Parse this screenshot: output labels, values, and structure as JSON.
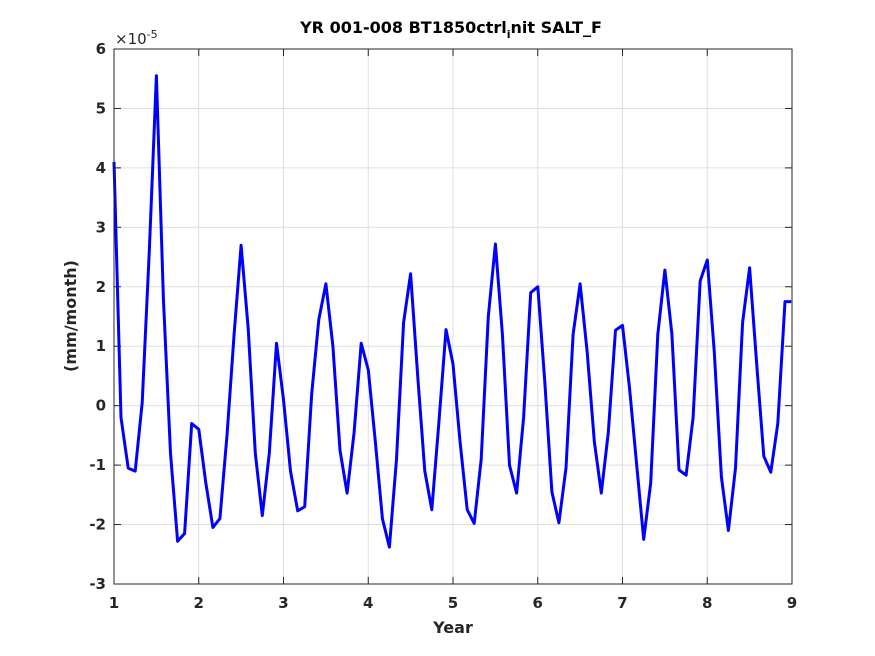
{
  "chart_data": {
    "type": "line",
    "title": "YR 001-008 BT1850ctrl_init SALT_F",
    "title_main": "YR 001-008 BT1850ctrl",
    "title_sub": "i",
    "title_tail": "nit SALT_F",
    "xlabel": "Year",
    "ylabel": "(mm/month)",
    "y_exponent_base": "×10",
    "y_exponent_power": "-5",
    "xlim": [
      1,
      9
    ],
    "ylim": [
      -3,
      6
    ],
    "xticks": [
      "1",
      "2",
      "3",
      "4",
      "5",
      "6",
      "7",
      "8",
      "9"
    ],
    "yticks": [
      "-3",
      "-2",
      "-1",
      "0",
      "1",
      "2",
      "3",
      "4",
      "5",
      "6"
    ],
    "grid": true,
    "line_color": "#0000ff",
    "series": [
      {
        "x": [
          1.0,
          1.083,
          1.167,
          1.25,
          1.333,
          1.417,
          1.5,
          1.583,
          1.667,
          1.75,
          1.833,
          1.917,
          2.0,
          2.083,
          2.167,
          2.25,
          2.333,
          2.417,
          2.5,
          2.583,
          2.667,
          2.75,
          2.833,
          2.917,
          3.0,
          3.083,
          3.167,
          3.25,
          3.333,
          3.417,
          3.5,
          3.583,
          3.667,
          3.75,
          3.833,
          3.917,
          4.0,
          4.083,
          4.167,
          4.25,
          4.333,
          4.417,
          4.5,
          4.583,
          4.667,
          4.75,
          4.833,
          4.917,
          5.0,
          5.083,
          5.167,
          5.25,
          5.333,
          5.417,
          5.5,
          5.583,
          5.667,
          5.75,
          5.833,
          5.917,
          6.0,
          6.083,
          6.167,
          6.25,
          6.333,
          6.417,
          6.5,
          6.583,
          6.667,
          6.75,
          6.833,
          6.917,
          7.0,
          7.083,
          7.167,
          7.25,
          7.333,
          7.417,
          7.5,
          7.583,
          7.667,
          7.75,
          7.833,
          7.917,
          8.0,
          8.083,
          8.167,
          8.25,
          8.333,
          8.417,
          8.5,
          8.583,
          8.667,
          8.75,
          8.833,
          8.917,
          8.99
        ],
        "y": [
          4.1,
          -0.2,
          -1.05,
          -1.1,
          0.05,
          2.6,
          5.55,
          1.8,
          -0.8,
          -2.28,
          -2.15,
          -0.3,
          -0.4,
          -1.3,
          -2.05,
          -1.9,
          -0.5,
          1.2,
          2.7,
          1.3,
          -0.8,
          -1.85,
          -0.8,
          1.05,
          0.1,
          -1.1,
          -1.77,
          -1.7,
          0.2,
          1.45,
          2.05,
          1.0,
          -0.75,
          -1.47,
          -0.45,
          1.05,
          0.6,
          -0.6,
          -1.9,
          -2.38,
          -0.9,
          1.4,
          2.22,
          0.5,
          -1.1,
          -1.75,
          -0.3,
          1.28,
          0.7,
          -0.6,
          -1.75,
          -1.98,
          -0.9,
          1.5,
          2.72,
          1.2,
          -1.0,
          -1.47,
          -0.2,
          1.9,
          2.0,
          0.4,
          -1.45,
          -1.97,
          -1.05,
          1.2,
          2.05,
          0.9,
          -0.6,
          -1.47,
          -0.45,
          1.27,
          1.35,
          0.3,
          -1.0,
          -2.25,
          -1.3,
          1.2,
          2.28,
          1.2,
          -1.08,
          -1.17,
          -0.2,
          2.1,
          2.45,
          0.9,
          -1.2,
          -2.1,
          -1.05,
          1.4,
          2.32,
          0.7,
          -0.85,
          -1.12,
          -0.3,
          1.75,
          1.75
        ]
      }
    ]
  }
}
